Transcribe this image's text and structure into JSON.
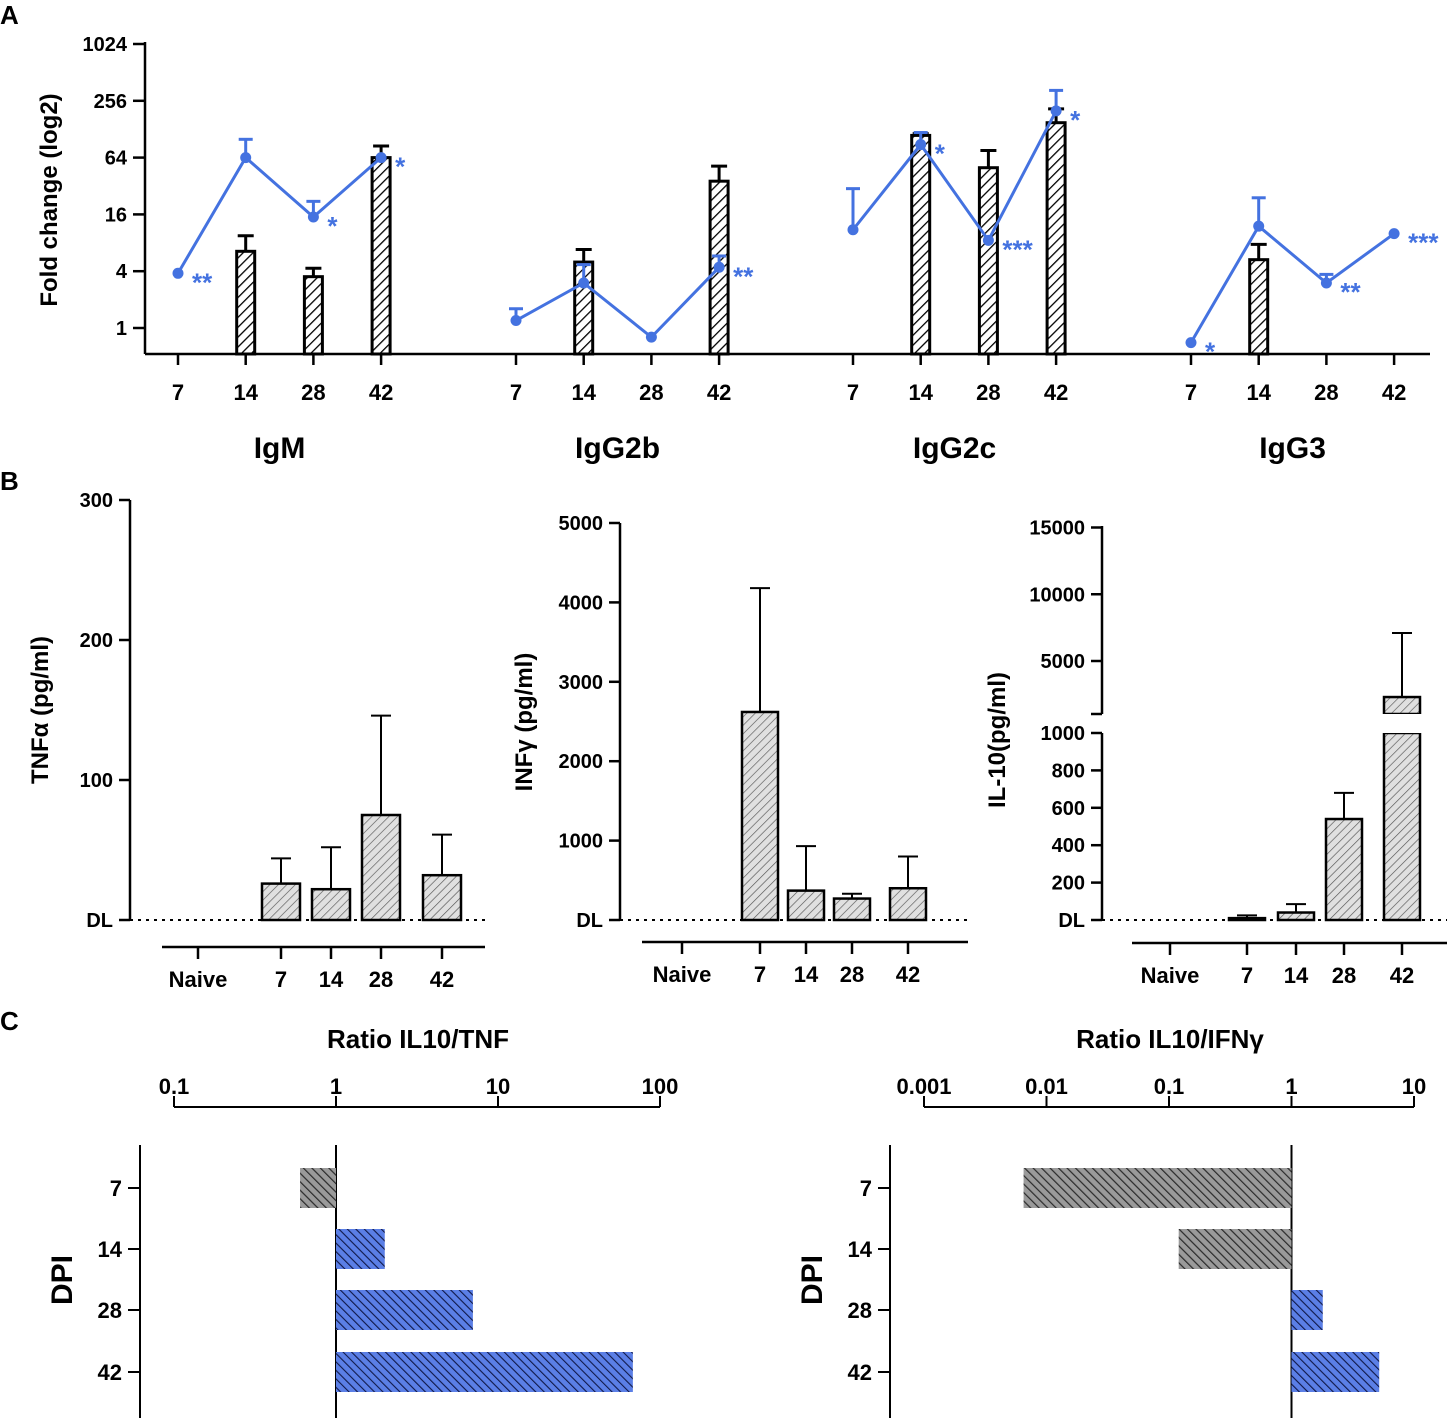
{
  "panel_labels": [
    "A",
    "B",
    "C"
  ],
  "colors": {
    "blue": "#4472e0",
    "black": "#000000",
    "grey_fill": "#d0d0d0",
    "dark_grey": "#7a7a7a",
    "blue_bar": "#3a5fd4"
  },
  "chart_data": [
    {
      "id": "A",
      "type": "bar",
      "ylabel": "Fold change (log2)",
      "yscale": "log2",
      "ylim": [
        0.5,
        1024
      ],
      "yticks": [
        "1",
        "4",
        "16",
        "64",
        "256",
        "1024"
      ],
      "ytick_values": [
        1,
        4,
        16,
        64,
        256,
        1024
      ],
      "categories": [
        "7",
        "14",
        "28",
        "42"
      ],
      "groups": [
        {
          "name": "IgM",
          "bars": [
            null,
            6.5,
            3.5,
            64
          ],
          "bar_err": [
            null,
            9.5,
            4.3,
            85
          ],
          "line": [
            3.8,
            64,
            15,
            64
          ],
          "line_err": [
            null,
            100,
            22,
            null
          ],
          "stars": [
            "**",
            "",
            "*",
            "*"
          ]
        },
        {
          "name": "IgG2b",
          "bars": [
            null,
            5.0,
            null,
            36
          ],
          "bar_err": [
            null,
            6.8,
            null,
            52
          ],
          "line": [
            1.2,
            3.0,
            0.8,
            4.4
          ],
          "line_err": [
            1.6,
            4.7,
            null,
            5.8
          ],
          "stars": [
            "",
            "",
            "",
            "**"
          ]
        },
        {
          "name": "IgG2c",
          "bars": [
            null,
            110,
            50,
            150
          ],
          "bar_err": [
            null,
            115,
            76,
            210
          ],
          "line": [
            11,
            88,
            8.5,
            200
          ],
          "line_err": [
            30,
            118,
            null,
            330
          ],
          "stars": [
            "",
            "*",
            "***",
            "*"
          ]
        },
        {
          "name": "IgG3",
          "bars": [
            null,
            5.3,
            null,
            null
          ],
          "bar_err": [
            null,
            7.7,
            null,
            null
          ],
          "line": [
            0.7,
            12,
            3.0,
            10
          ],
          "line_err": [
            null,
            24,
            3.7,
            null
          ],
          "stars": [
            "*",
            "",
            "**",
            "***"
          ]
        }
      ]
    },
    {
      "id": "B1",
      "type": "bar",
      "ylabel": "TNFα (pg/ml)",
      "yticks": [
        "300",
        "200",
        "100",
        "DL"
      ],
      "ytick_values": [
        300,
        200,
        100,
        0
      ],
      "ylim": [
        0,
        300
      ],
      "categories": [
        "Naive",
        "7",
        "14",
        "28",
        "42"
      ],
      "values": [
        null,
        26,
        22,
        75,
        32
      ],
      "errors": [
        null,
        44,
        52,
        146,
        61
      ]
    },
    {
      "id": "B2",
      "type": "bar",
      "ylabel": "INFγ (pg/ml)",
      "yticks": [
        "5000",
        "4000",
        "3000",
        "2000",
        "1000",
        "DL"
      ],
      "ytick_values": [
        5000,
        4000,
        3000,
        2000,
        1000,
        0
      ],
      "ylim": [
        0,
        5000
      ],
      "categories": [
        "Naive",
        "7",
        "14",
        "28",
        "42"
      ],
      "values": [
        null,
        2620,
        370,
        270,
        400
      ],
      "errors": [
        null,
        4180,
        930,
        330,
        800
      ]
    },
    {
      "id": "B3",
      "type": "bar",
      "ylabel": "IL-10(pg/ml)",
      "yticks_lower": [
        "1000",
        "800",
        "600",
        "400",
        "200",
        "DL"
      ],
      "ytick_values_lower": [
        1000,
        800,
        600,
        400,
        200,
        0
      ],
      "yticks_upper": [
        "15000",
        "10000",
        "5000"
      ],
      "ytick_values_upper": [
        15000,
        10000,
        5000
      ],
      "broken_axis": [
        1000,
        1000
      ],
      "categories": [
        "Naive",
        "7",
        "14",
        "28",
        "42"
      ],
      "values": [
        null,
        10,
        40,
        540,
        2300
      ],
      "errors": [
        null,
        25,
        85,
        680,
        7100
      ]
    },
    {
      "id": "C1",
      "type": "bar",
      "title": "Ratio IL10/TNF",
      "ylabel": "DPI",
      "xscale": "log10",
      "xticks": [
        "0.1",
        "1",
        "10",
        "100"
      ],
      "xtick_values": [
        0.1,
        1,
        10,
        100
      ],
      "categories": [
        "7",
        "14",
        "28",
        "42"
      ],
      "values": [
        0.6,
        2.0,
        7.0,
        68
      ]
    },
    {
      "id": "C2",
      "type": "bar",
      "title": "Ratio IL10/IFNγ",
      "ylabel": "DPI",
      "xscale": "log10",
      "xticks": [
        "0.001",
        "0.01",
        "0.1",
        "1",
        "10"
      ],
      "xtick_values": [
        0.001,
        0.01,
        0.1,
        1,
        10
      ],
      "categories": [
        "7",
        "14",
        "28",
        "42"
      ],
      "values": [
        0.0065,
        0.12,
        1.8,
        5.2
      ]
    }
  ]
}
